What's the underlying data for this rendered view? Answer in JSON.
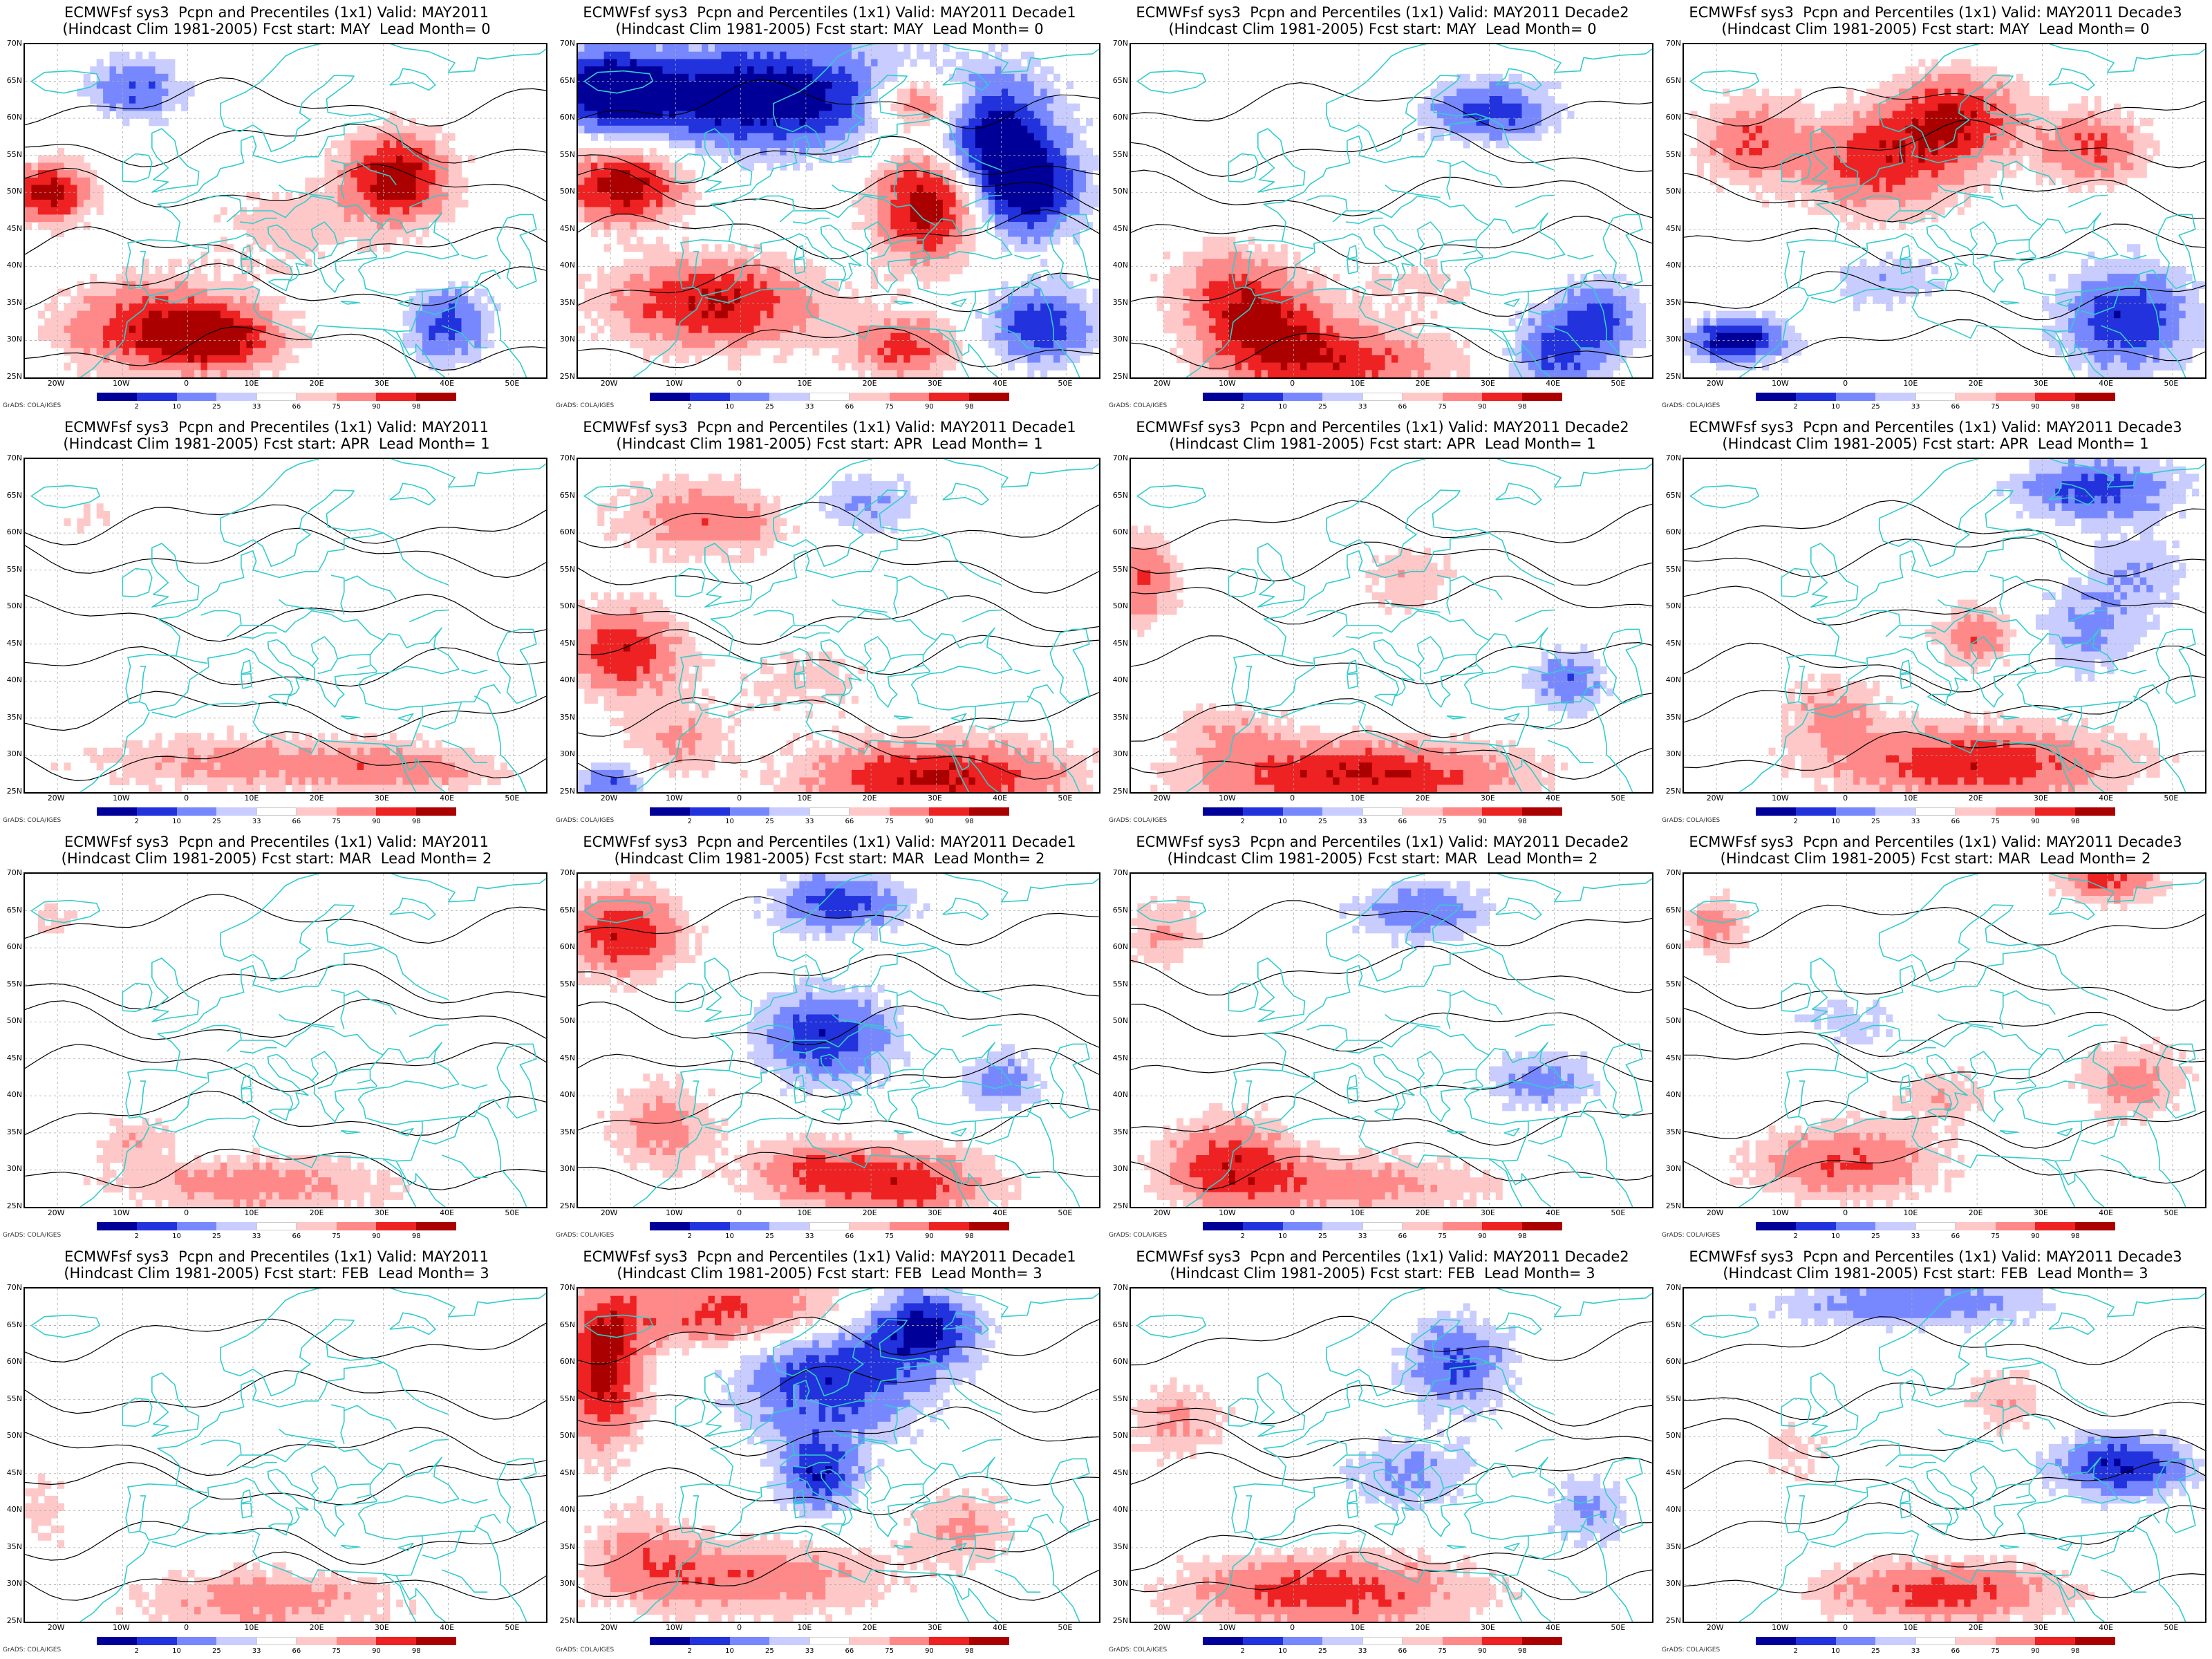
{
  "figure": {
    "credit": "GrADS: COLA/IGES",
    "colorbar_ticks": [
      "2",
      "10",
      "25",
      "33",
      "66",
      "75",
      "90",
      "98"
    ],
    "colorbar_colors": [
      "#000099",
      "#2233dd",
      "#7788ff",
      "#c8ccff",
      "#ffffff",
      "#ffc8c8",
      "#ff8888",
      "#ee2222",
      "#aa0000"
    ],
    "lat_labels": [
      "70N",
      "65N",
      "60N",
      "55N",
      "50N",
      "45N",
      "40N",
      "35N",
      "30N",
      "25N"
    ],
    "lon_labels": [
      "20W",
      "10W",
      "0",
      "10E",
      "20E",
      "30E",
      "40E",
      "50E"
    ],
    "colors": {
      "coastline": "#33cccc",
      "contour": "#000000"
    }
  },
  "panels": [
    {
      "title1": "ECMWFsf sys3  Pcpn and Precentiles (1x1) Valid: MAY2011",
      "title2": "(Hindcast Clim 1981-2005) Fcst start: MAY  Lead Month= 0"
    },
    {
      "title1": "ECMWFsf sys3  Pcpn and Percentiles (1x1) Valid: MAY2011 Decade1",
      "title2": "(Hindcast Clim 1981-2005) Fcst start: MAY  Lead Month= 0"
    },
    {
      "title1": "ECMWFsf sys3  Pcpn and Percentiles (1x1) Valid: MAY2011 Decade2",
      "title2": "(Hindcast Clim 1981-2005) Fcst start: MAY  Lead Month= 0"
    },
    {
      "title1": "ECMWFsf sys3  Pcpn and Percentiles (1x1) Valid: MAY2011 Decade3",
      "title2": "(Hindcast Clim 1981-2005) Fcst start: MAY  Lead Month= 0"
    },
    {
      "title1": "ECMWFsf sys3  Pcpn and Precentiles (1x1) Valid: MAY2011",
      "title2": "(Hindcast Clim 1981-2005) Fcst start: APR  Lead Month= 1"
    },
    {
      "title1": "ECMWFsf sys3  Pcpn and Percentiles (1x1) Valid: MAY2011 Decade1",
      "title2": "(Hindcast Clim 1981-2005) Fcst start: APR  Lead Month= 1"
    },
    {
      "title1": "ECMWFsf sys3  Pcpn and Percentiles (1x1) Valid: MAY2011 Decade2",
      "title2": "(Hindcast Clim 1981-2005) Fcst start: APR  Lead Month= 1"
    },
    {
      "title1": "ECMWFsf sys3  Pcpn and Percentiles (1x1) Valid: MAY2011 Decade3",
      "title2": "(Hindcast Clim 1981-2005) Fcst start: APR  Lead Month= 1"
    },
    {
      "title1": "ECMWFsf sys3  Pcpn and Precentiles (1x1) Valid: MAY2011",
      "title2": "(Hindcast Clim 1981-2005) Fcst start: MAR  Lead Month= 2"
    },
    {
      "title1": "ECMWFsf sys3  Pcpn and Percentiles (1x1) Valid: MAY2011 Decade1",
      "title2": "(Hindcast Clim 1981-2005) Fcst start: MAR  Lead Month= 2"
    },
    {
      "title1": "ECMWFsf sys3  Pcpn and Percentiles (1x1) Valid: MAY2011 Decade2",
      "title2": "(Hindcast Clim 1981-2005) Fcst start: MAR  Lead Month= 2"
    },
    {
      "title1": "ECMWFsf sys3  Pcpn and Percentiles (1x1) Valid: MAY2011 Decade3",
      "title2": "(Hindcast Clim 1981-2005) Fcst start: MAR  Lead Month= 2"
    },
    {
      "title1": "ECMWFsf sys3  Pcpn and Precentiles (1x1) Valid: MAY2011",
      "title2": "(Hindcast Clim 1981-2005) Fcst start: FEB  Lead Month= 3"
    },
    {
      "title1": "ECMWFsf sys3  Pcpn and Percentiles (1x1) Valid: MAY2011 Decade1",
      "title2": "(Hindcast Clim 1981-2005) Fcst start: FEB  Lead Month= 3"
    },
    {
      "title1": "ECMWFsf sys3  Pcpn and Percentiles (1x1) Valid: MAY2011 Decade2",
      "title2": "(Hindcast Clim 1981-2005) Fcst start: FEB  Lead Month= 3"
    },
    {
      "title1": "ECMWFsf sys3  Pcpn and Percentiles (1x1) Valid: MAY2011 Decade3",
      "title2": "(Hindcast Clim 1981-2005) Fcst start: FEB  Lead Month= 3"
    }
  ]
}
